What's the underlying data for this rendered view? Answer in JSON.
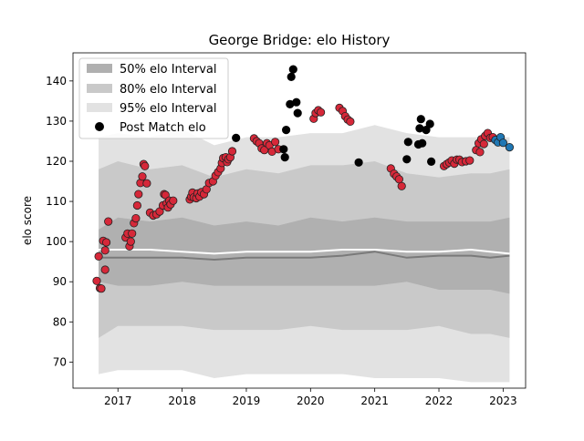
{
  "chart_data": {
    "type": "scatter",
    "title": "George Bridge: elo History",
    "xlabel": "",
    "ylabel": "elo score",
    "xlim": [
      2016.3,
      2023.35
    ],
    "ylim": [
      63.5,
      147
    ],
    "x_ticks": [
      2017,
      2018,
      2019,
      2020,
      2021,
      2022,
      2023
    ],
    "y_ticks": [
      70,
      80,
      90,
      100,
      110,
      120,
      130,
      140
    ],
    "grid": false,
    "legend": {
      "placement": "top-left",
      "entries": [
        {
          "label": "50% elo Interval",
          "color": "#b0b0b0",
          "kind": "patch"
        },
        {
          "label": "80% elo Interval",
          "color": "#c9c9c9",
          "kind": "patch"
        },
        {
          "label": "95% elo Interval",
          "color": "#e2e2e2",
          "kind": "patch"
        },
        {
          "label": "Post Match elo",
          "color": "#000000",
          "kind": "marker"
        }
      ]
    },
    "colors": {
      "band95": "#e2e2e2",
      "band80": "#c9c9c9",
      "band50": "#b0b0b0",
      "median": "#7a7a7a",
      "mean": "#ffffff",
      "point_black": "#000000",
      "point_red": "#d62839",
      "point_blue": "#1f77b4"
    },
    "bands": {
      "x": [
        2016.7,
        2017.0,
        2017.5,
        2018.0,
        2018.5,
        2019.0,
        2019.5,
        2020.0,
        2020.5,
        2021.0,
        2021.5,
        2022.0,
        2022.5,
        2022.8,
        2023.1
      ],
      "p95_hi": [
        126,
        127,
        126,
        128,
        124,
        126,
        126,
        127,
        127,
        129,
        127,
        126,
        126,
        126,
        126
      ],
      "p80_hi": [
        118,
        120,
        118,
        119,
        116,
        118,
        117,
        119,
        119,
        120,
        117,
        116,
        117,
        117,
        118
      ],
      "p50_hi": [
        103,
        106,
        105,
        106,
        104,
        105,
        104,
        106,
        105,
        106,
        105,
        105,
        105,
        105,
        106
      ],
      "median": [
        96,
        96,
        96,
        96,
        95.5,
        96,
        96,
        96,
        96.5,
        97.5,
        96,
        96.5,
        96.5,
        96,
        96.5
      ],
      "mean": [
        98,
        98,
        98,
        97.5,
        97,
        97.5,
        97.5,
        97.5,
        98,
        98,
        97.5,
        97.5,
        98,
        97.5,
        97
      ],
      "p50_lo": [
        90,
        89,
        89,
        90,
        89,
        89,
        89,
        89,
        89,
        89,
        90,
        88,
        88,
        88,
        87
      ],
      "p80_lo": [
        76,
        79,
        79,
        79,
        78,
        78,
        78,
        79,
        78,
        78,
        78,
        79,
        77,
        77,
        76
      ],
      "p95_lo": [
        67,
        68,
        68,
        68,
        66,
        67,
        67,
        67,
        67,
        66,
        66,
        66,
        65,
        65,
        65
      ]
    },
    "series": [
      {
        "color_key": "point_red",
        "points": [
          [
            2016.67,
            90.2
          ],
          [
            2016.7,
            96.3
          ],
          [
            2016.72,
            88.4
          ],
          [
            2016.74,
            88.3
          ],
          [
            2016.77,
            100.2
          ],
          [
            2016.8,
            97.8
          ],
          [
            2016.82,
            99.8
          ],
          [
            2016.8,
            93.0
          ],
          [
            2016.85,
            105.0
          ],
          [
            2017.12,
            101.0
          ],
          [
            2017.15,
            102.0
          ],
          [
            2017.18,
            98.8
          ],
          [
            2017.2,
            100.0
          ],
          [
            2017.22,
            102.0
          ],
          [
            2017.25,
            104.6
          ],
          [
            2017.28,
            105.8
          ],
          [
            2017.3,
            109.0
          ],
          [
            2017.32,
            111.8
          ],
          [
            2017.35,
            114.6
          ],
          [
            2017.38,
            116.2
          ],
          [
            2017.4,
            119.3
          ],
          [
            2017.42,
            118.8
          ],
          [
            2017.45,
            114.5
          ],
          [
            2017.5,
            107.2
          ],
          [
            2017.55,
            106.5
          ],
          [
            2017.6,
            106.8
          ],
          [
            2017.65,
            107.5
          ],
          [
            2017.7,
            109.0
          ],
          [
            2017.72,
            111.8
          ],
          [
            2017.74,
            111.6
          ],
          [
            2017.76,
            109.5
          ],
          [
            2017.78,
            108.5
          ],
          [
            2017.8,
            110.2
          ],
          [
            2017.82,
            109.3
          ],
          [
            2017.86,
            110.2
          ],
          [
            2018.12,
            110.5
          ],
          [
            2018.14,
            111.2
          ],
          [
            2018.16,
            112.2
          ],
          [
            2018.18,
            111.0
          ],
          [
            2018.22,
            110.8
          ],
          [
            2018.24,
            112.0
          ],
          [
            2018.27,
            111.2
          ],
          [
            2018.3,
            112.3
          ],
          [
            2018.34,
            111.8
          ],
          [
            2018.38,
            113.0
          ],
          [
            2018.42,
            114.6
          ],
          [
            2018.48,
            115.0
          ],
          [
            2018.52,
            116.4
          ],
          [
            2018.56,
            117.3
          ],
          [
            2018.6,
            118.2
          ],
          [
            2018.62,
            119.6
          ],
          [
            2018.64,
            120.8
          ],
          [
            2018.68,
            121.0
          ],
          [
            2018.7,
            119.8
          ],
          [
            2018.72,
            120.5
          ],
          [
            2018.75,
            121.0
          ],
          [
            2018.78,
            122.5
          ],
          [
            2019.12,
            125.7
          ],
          [
            2019.16,
            125.0
          ],
          [
            2019.2,
            124.5
          ],
          [
            2019.24,
            123.2
          ],
          [
            2019.28,
            122.8
          ],
          [
            2019.32,
            124.5
          ],
          [
            2019.36,
            124.0
          ],
          [
            2019.4,
            122.4
          ],
          [
            2019.45,
            124.8
          ],
          [
            2019.5,
            123.0
          ],
          [
            2020.05,
            130.6
          ],
          [
            2020.08,
            132.0
          ],
          [
            2020.12,
            132.7
          ],
          [
            2020.16,
            132.2
          ],
          [
            2020.45,
            133.3
          ],
          [
            2020.5,
            132.5
          ],
          [
            2020.54,
            131.2
          ],
          [
            2020.58,
            130.4
          ],
          [
            2020.62,
            129.9
          ],
          [
            2021.25,
            118.2
          ],
          [
            2021.3,
            116.9
          ],
          [
            2021.34,
            116.2
          ],
          [
            2021.38,
            115.5
          ],
          [
            2021.42,
            113.8
          ],
          [
            2022.08,
            118.8
          ],
          [
            2022.12,
            119.3
          ],
          [
            2022.16,
            119.7
          ],
          [
            2022.2,
            120.2
          ],
          [
            2022.24,
            119.4
          ],
          [
            2022.28,
            120.4
          ],
          [
            2022.32,
            120.4
          ],
          [
            2022.36,
            119.8
          ],
          [
            2022.42,
            120.0
          ],
          [
            2022.48,
            120.2
          ],
          [
            2022.58,
            122.8
          ],
          [
            2022.62,
            124.5
          ],
          [
            2022.64,
            122.3
          ],
          [
            2022.66,
            125.5
          ],
          [
            2022.7,
            124.3
          ],
          [
            2022.72,
            126.3
          ],
          [
            2022.76,
            127.0
          ],
          [
            2022.8,
            125.8
          ],
          [
            2022.84,
            126.0
          ]
        ]
      },
      {
        "color_key": "point_black",
        "points": [
          [
            2018.84,
            125.8
          ],
          [
            2019.58,
            123.0
          ],
          [
            2019.6,
            121.0
          ],
          [
            2019.62,
            127.8
          ],
          [
            2019.68,
            134.2
          ],
          [
            2019.7,
            141.0
          ],
          [
            2019.73,
            142.9
          ],
          [
            2019.78,
            134.7
          ],
          [
            2019.8,
            132.0
          ],
          [
            2020.75,
            119.7
          ],
          [
            2021.5,
            120.5
          ],
          [
            2021.52,
            124.8
          ],
          [
            2021.68,
            124.2
          ],
          [
            2021.7,
            128.2
          ],
          [
            2021.72,
            130.5
          ],
          [
            2021.74,
            124.5
          ],
          [
            2021.8,
            127.8
          ],
          [
            2021.86,
            129.3
          ],
          [
            2021.88,
            119.9
          ]
        ]
      },
      {
        "color_key": "point_blue",
        "points": [
          [
            2022.88,
            125.3
          ],
          [
            2022.92,
            124.7
          ],
          [
            2022.96,
            126.0
          ],
          [
            2023.0,
            124.6
          ],
          [
            2023.1,
            123.5
          ]
        ]
      }
    ]
  }
}
